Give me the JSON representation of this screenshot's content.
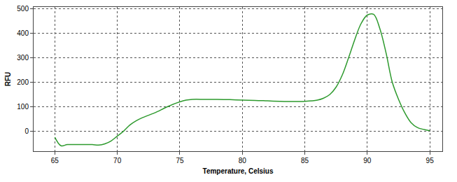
{
  "chart_data": {
    "type": "line",
    "x_label": "Temperature, Celsius",
    "y_label": "RFU",
    "x": [
      65,
      65.5,
      66,
      67,
      68,
      68.5,
      69,
      69.5,
      70,
      70.5,
      71,
      71.5,
      72,
      73,
      74,
      75,
      75.5,
      76,
      77,
      78,
      79,
      80,
      81,
      82,
      83,
      84,
      85,
      86,
      86.5,
      87,
      87.5,
      88,
      88.5,
      89,
      89.5,
      90,
      90.5,
      91,
      91.5,
      92,
      92.5,
      93,
      93.5,
      94,
      95
    ],
    "series": [
      {
        "color": "#2e9a2e",
        "values": [
          -25,
          -60,
          -55,
          -55,
          -55,
          -57,
          -52,
          -40,
          -20,
          0,
          25,
          42,
          55,
          75,
          100,
          120,
          127,
          130,
          130,
          130,
          129,
          127,
          126,
          124,
          122,
          121,
          122,
          127,
          135,
          150,
          180,
          230,
          300,
          375,
          440,
          475,
          478,
          420,
          320,
          200,
          130,
          75,
          35,
          15,
          2
        ]
      }
    ],
    "xlim": [
      63.3,
      96
    ],
    "xticks": [
      65,
      70,
      75,
      80,
      85,
      90,
      95
    ],
    "ylim": [
      -82,
      508
    ],
    "yticks": [
      0,
      100,
      200,
      300,
      400,
      500
    ],
    "grid": true
  }
}
